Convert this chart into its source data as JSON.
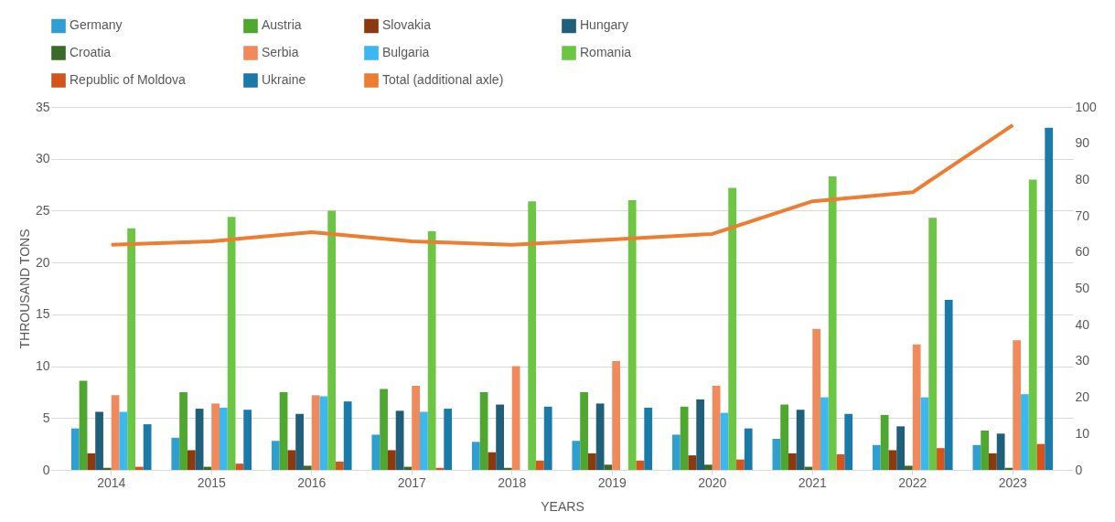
{
  "chart_data": {
    "type": "bar",
    "xlabel": "YEARS",
    "ylabel": "THROUSAND TONS",
    "categories": [
      "2014",
      "2015",
      "2016",
      "2017",
      "2018",
      "2019",
      "2020",
      "2021",
      "2022",
      "2023"
    ],
    "series": [
      {
        "name": "Germany",
        "color": "#2e9fd0",
        "values": [
          4.0,
          3.1,
          2.8,
          3.4,
          2.7,
          2.8,
          3.4,
          3.0,
          2.4,
          2.4
        ]
      },
      {
        "name": "Austria",
        "color": "#4ea72e",
        "values": [
          8.6,
          7.5,
          7.5,
          7.8,
          7.5,
          7.5,
          6.1,
          6.3,
          5.3,
          3.8
        ]
      },
      {
        "name": "Slovakia",
        "color": "#8b3a10",
        "values": [
          1.6,
          1.9,
          1.9,
          1.9,
          1.7,
          1.6,
          1.4,
          1.6,
          1.9,
          1.6
        ]
      },
      {
        "name": "Hungary",
        "color": "#1f5f7a",
        "values": [
          5.6,
          5.9,
          5.4,
          5.7,
          6.3,
          6.4,
          6.8,
          5.8,
          4.2,
          3.5
        ]
      },
      {
        "name": "Croatia",
        "color": "#3a6b26",
        "values": [
          0.2,
          0.3,
          0.4,
          0.3,
          0.2,
          0.5,
          0.5,
          0.3,
          0.4,
          0.2
        ]
      },
      {
        "name": "Serbia",
        "color": "#f08a5d",
        "values": [
          7.2,
          6.4,
          7.2,
          8.1,
          10.0,
          10.5,
          8.1,
          13.6,
          12.1,
          12.5
        ]
      },
      {
        "name": "Bulgaria",
        "color": "#3cb8ee",
        "values": [
          5.6,
          6.0,
          7.1,
          5.6,
          null,
          null,
          5.5,
          7.0,
          7.0,
          7.3
        ]
      },
      {
        "name": "Romania",
        "color": "#6cc644",
        "values": [
          23.3,
          24.4,
          25.0,
          23.0,
          25.9,
          26.0,
          27.2,
          28.3,
          24.3,
          28.0
        ]
      },
      {
        "name": "Republic of Moldova",
        "color": "#d4541c",
        "values": [
          0.3,
          0.6,
          0.8,
          0.2,
          0.9,
          0.9,
          1.0,
          1.5,
          2.1,
          2.5
        ]
      },
      {
        "name": "Ukraine",
        "color": "#1a7aa8",
        "values": [
          4.4,
          5.8,
          6.6,
          5.9,
          6.1,
          6.0,
          4.0,
          5.4,
          16.4,
          33.0
        ]
      },
      {
        "name": "Total (additional axle)",
        "color": "#ed7d31",
        "type": "line",
        "axis": "y2",
        "values": [
          62,
          63,
          65.5,
          63,
          62,
          63.5,
          65,
          74,
          76.5,
          95
        ]
      }
    ],
    "ylim": [
      0,
      35
    ],
    "yticks": [
      0,
      5,
      10,
      15,
      20,
      25,
      30,
      35
    ],
    "y2lim": [
      0,
      100
    ],
    "y2ticks": [
      0,
      10,
      20,
      30,
      40,
      50,
      60,
      70,
      80,
      90,
      100
    ],
    "grid": "y",
    "legend": "top"
  }
}
